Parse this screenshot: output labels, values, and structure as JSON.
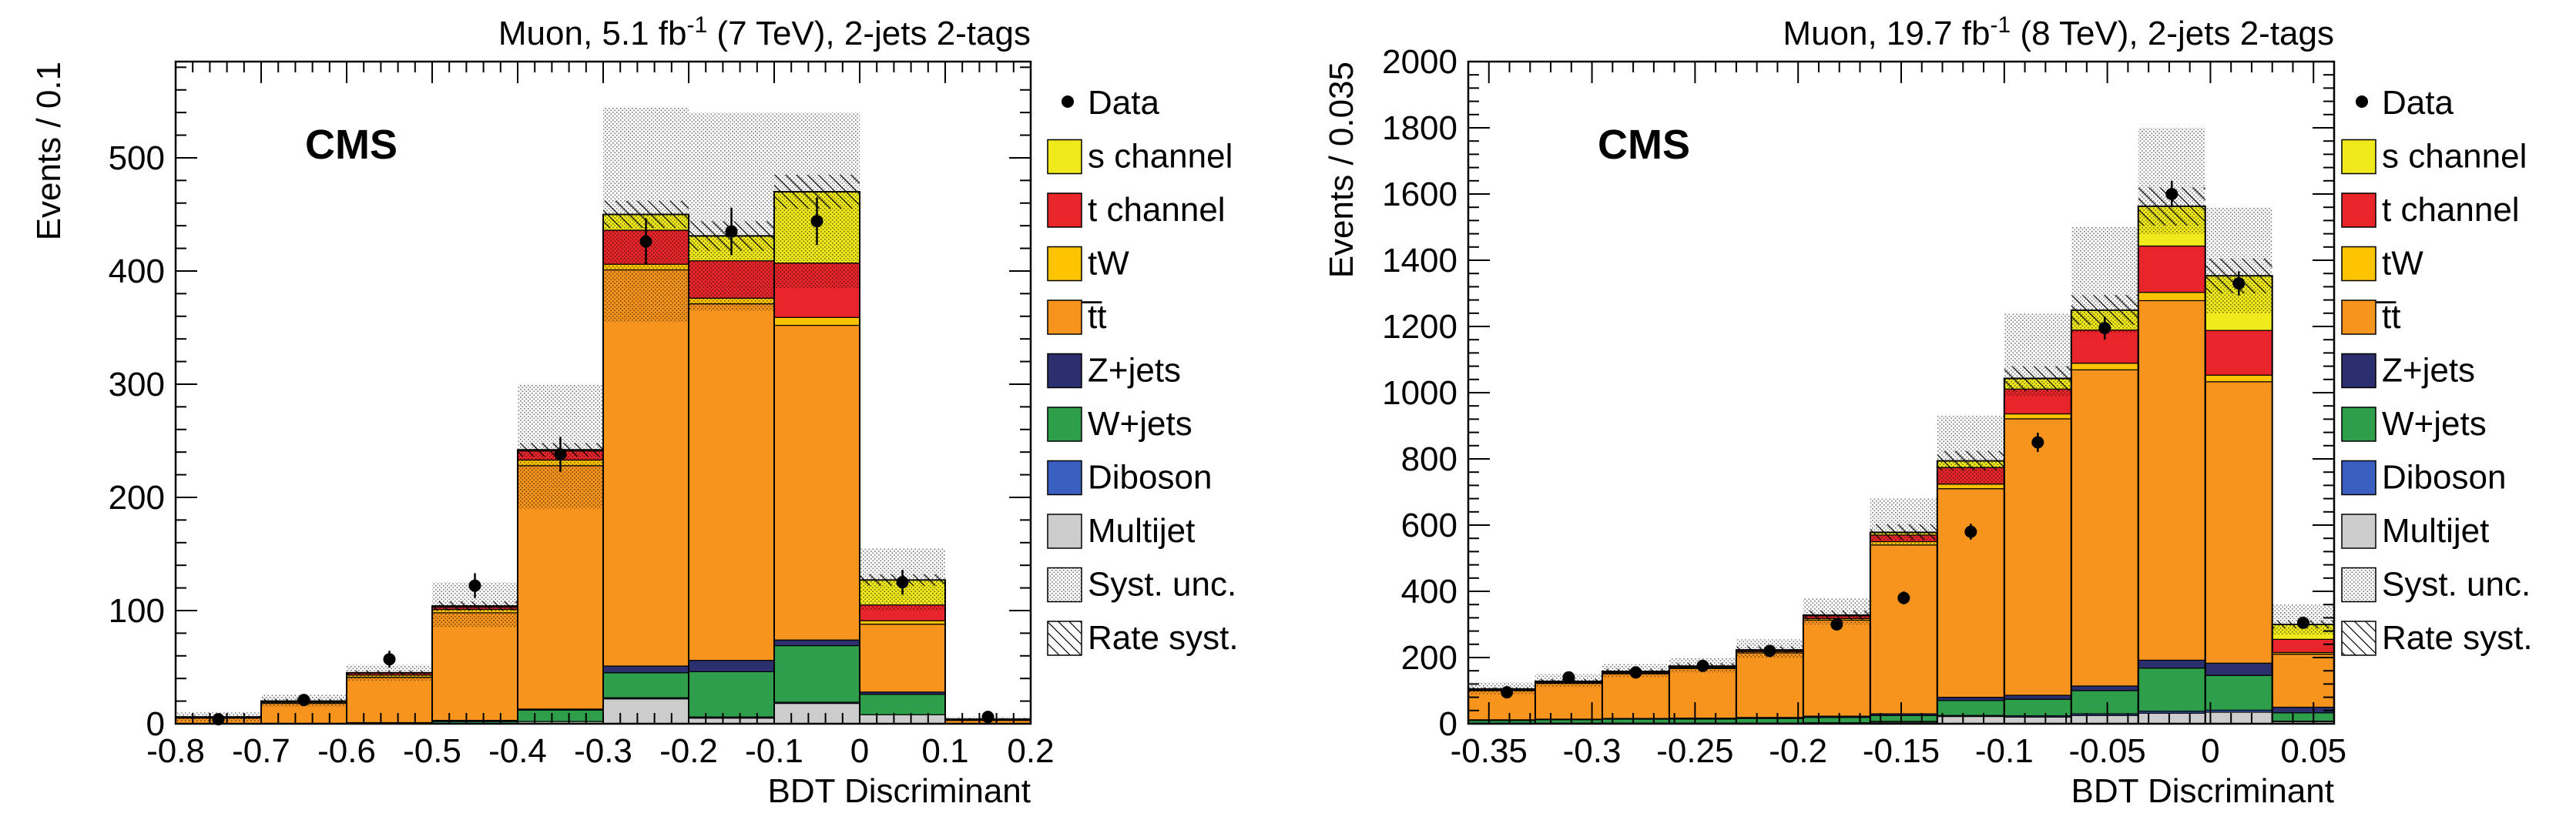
{
  "colors": {
    "s_channel": "#f0ea1c",
    "t_channel": "#e8252a",
    "tW": "#ffc400",
    "ttbar": "#f7941d",
    "Z_jets": "#2b2f6e",
    "W_jets": "#2e9e4a",
    "Diboson": "#3b5fc0",
    "Multijet": "#cccccc",
    "data": "#000000"
  },
  "chart_data": [
    {
      "type": "bar",
      "stacked": true,
      "title": "Muon, 5.1 fb",
      "title_sup": "-1",
      "title_rest": " (7 TeV), 2-jets 2-tags",
      "xlabel": "BDT Discriminant",
      "ylabel": "Events / 0.1",
      "cms_label": "CMS",
      "xlim": [
        -0.8,
        0.2
      ],
      "ylim": [
        0,
        585
      ],
      "xticks": [
        -0.8,
        -0.7,
        -0.6,
        -0.5,
        -0.4,
        -0.3,
        -0.2,
        -0.1,
        0,
        0.1,
        0.2
      ],
      "xtick_labels": [
        "-0.8",
        "-0.7",
        "-0.6",
        "-0.5",
        "-0.4",
        "-0.3",
        "-0.2",
        "-0.1",
        "0",
        "0.1",
        "0.2"
      ],
      "yticks": [
        0,
        100,
        200,
        300,
        400,
        500
      ],
      "ytick_labels": [
        "0",
        "100",
        "200",
        "300",
        "400",
        "500"
      ],
      "bin_edges": [
        -0.8,
        -0.7,
        -0.6,
        -0.5,
        -0.4,
        -0.3,
        -0.2,
        -0.1,
        0.0,
        0.1,
        0.2
      ],
      "series": [
        {
          "name": "Multijet",
          "key": "Multijet",
          "values": [
            0,
            0,
            0,
            0,
            2,
            22,
            5,
            18,
            8,
            0
          ]
        },
        {
          "name": "Diboson",
          "key": "Diboson",
          "values": [
            0,
            0,
            0,
            0,
            0,
            1,
            1,
            1,
            0,
            0
          ]
        },
        {
          "name": "W+jets",
          "key": "W_jets",
          "values": [
            0,
            0,
            1,
            2,
            10,
            22,
            40,
            50,
            18,
            0
          ]
        },
        {
          "name": "Z+jets",
          "key": "Z_jets",
          "values": [
            0,
            0,
            0,
            1,
            1,
            6,
            10,
            5,
            2,
            0
          ]
        },
        {
          "name": "t̅t",
          "key": "ttbar",
          "values": [
            5,
            18,
            40,
            95,
            215,
            350,
            315,
            278,
            60,
            3
          ]
        },
        {
          "name": "tW",
          "key": "tW",
          "values": [
            0,
            1,
            2,
            3,
            5,
            5,
            5,
            7,
            3,
            0
          ]
        },
        {
          "name": "t channel",
          "key": "t_channel",
          "values": [
            1,
            1,
            2,
            2,
            8,
            30,
            33,
            48,
            14,
            1
          ]
        },
        {
          "name": "s channel",
          "key": "s_channel",
          "values": [
            0,
            0,
            0,
            1,
            1,
            14,
            22,
            63,
            22,
            0
          ]
        }
      ],
      "totals": [
        6,
        20,
        45,
        104,
        242,
        450,
        431,
        470,
        127,
        4
      ],
      "syst_band": [
        [
          2,
          10
        ],
        [
          15,
          26
        ],
        [
          38,
          52
        ],
        [
          85,
          125
        ],
        [
          190,
          300
        ],
        [
          355,
          545
        ],
        [
          365,
          540
        ],
        [
          385,
          540
        ],
        [
          100,
          155
        ],
        [
          2,
          6
        ]
      ],
      "rate_band": [
        [
          5,
          7
        ],
        [
          19,
          22
        ],
        [
          43,
          47
        ],
        [
          100,
          108
        ],
        [
          236,
          248
        ],
        [
          438,
          462
        ],
        [
          418,
          444
        ],
        [
          455,
          485
        ],
        [
          122,
          132
        ],
        [
          3,
          5
        ]
      ],
      "data_points": {
        "x": [
          -0.75,
          -0.65,
          -0.55,
          -0.45,
          -0.35,
          -0.25,
          -0.15,
          -0.05,
          0.05,
          0.15
        ],
        "y": [
          4,
          21,
          57,
          122,
          238,
          426,
          435,
          444,
          125,
          6
        ],
        "err": [
          2,
          5,
          7.5,
          11,
          15.5,
          20.5,
          21,
          21,
          11,
          2.5
        ]
      },
      "legend": {
        "placement": "right",
        "entries": [
          "Data",
          "s channel",
          "t channel",
          "tW",
          "t̅t",
          "Z+jets",
          "W+jets",
          "Diboson",
          "Multijet",
          "Syst. unc.",
          "Rate syst."
        ]
      }
    },
    {
      "type": "bar",
      "stacked": true,
      "title": "Muon, 19.7 fb",
      "title_sup": "-1",
      "title_rest": " (8 TeV), 2-jets 2-tags",
      "xlabel": "BDT Discriminant",
      "ylabel": "Events / 0.035",
      "cms_label": "CMS",
      "xlim": [
        -0.36,
        0.06
      ],
      "ylim": [
        0,
        2000
      ],
      "xticks": [
        -0.35,
        -0.3,
        -0.25,
        -0.2,
        -0.15,
        -0.1,
        -0.05,
        0,
        0.05
      ],
      "xtick_labels": [
        "-0.35",
        "-0.3",
        "-0.25",
        "-0.2",
        "-0.15",
        "-0.1",
        "-0.05",
        "0",
        "0.05"
      ],
      "yticks": [
        0,
        200,
        400,
        600,
        800,
        1000,
        1200,
        1400,
        1600,
        1800,
        2000
      ],
      "ytick_labels": [
        "0",
        "200",
        "400",
        "600",
        "800",
        "1000",
        "1200",
        "1400",
        "1600",
        "1800",
        "2000"
      ],
      "bin_edges": [
        -0.36,
        -0.3275,
        -0.295,
        -0.2625,
        -0.23,
        -0.1975,
        -0.165,
        -0.1325,
        -0.1,
        -0.0675,
        -0.035,
        -0.0025,
        0.03,
        0.06
      ],
      "series": [
        {
          "name": "Multijet",
          "key": "Multijet",
          "values": [
            2,
            2,
            2,
            2,
            2,
            2,
            5,
            22,
            20,
            25,
            32,
            35,
            6
          ]
        },
        {
          "name": "Diboson",
          "key": "Diboson",
          "values": [
            0,
            0,
            0,
            0,
            0,
            1,
            2,
            3,
            4,
            5,
            6,
            6,
            2
          ]
        },
        {
          "name": "W+jets",
          "key": "W_jets",
          "values": [
            8,
            10,
            12,
            12,
            14,
            16,
            18,
            45,
            50,
            70,
            130,
            105,
            25
          ]
        },
        {
          "name": "Z+jets",
          "key": "Z_jets",
          "values": [
            2,
            2,
            2,
            3,
            3,
            4,
            5,
            10,
            12,
            14,
            24,
            37,
            17
          ]
        },
        {
          "name": "t̅t",
          "key": "ttbar",
          "values": [
            88,
            108,
            135,
            150,
            195,
            290,
            510,
            630,
            835,
            955,
            1086,
            850,
            160
          ]
        },
        {
          "name": "tW",
          "key": "tW",
          "values": [
            2,
            2,
            3,
            3,
            4,
            5,
            10,
            14,
            15,
            20,
            25,
            20,
            5
          ]
        },
        {
          "name": "t channel",
          "key": "t_channel",
          "values": [
            2,
            3,
            3,
            3,
            4,
            8,
            20,
            50,
            75,
            100,
            140,
            135,
            40
          ]
        },
        {
          "name": "s channel",
          "key": "s_channel",
          "values": [
            1,
            1,
            1,
            1,
            1,
            2,
            8,
            20,
            32,
            60,
            120,
            165,
            45
          ]
        }
      ],
      "totals": [
        105,
        128,
        158,
        174,
        223,
        328,
        578,
        794,
        1043,
        1249,
        1563,
        1353,
        300
      ],
      "syst_band": [
        [
          90,
          125
        ],
        [
          110,
          150
        ],
        [
          140,
          180
        ],
        [
          155,
          200
        ],
        [
          200,
          255
        ],
        [
          300,
          380
        ],
        [
          540,
          680
        ],
        [
          720,
          930
        ],
        [
          990,
          1240
        ],
        [
          1180,
          1500
        ],
        [
          1480,
          1800
        ],
        [
          1240,
          1560
        ],
        [
          270,
          360
        ]
      ],
      "rate_band": [
        [
          100,
          110
        ],
        [
          122,
          135
        ],
        [
          151,
          166
        ],
        [
          166,
          183
        ],
        [
          213,
          234
        ],
        [
          314,
          342
        ],
        [
          555,
          602
        ],
        [
          765,
          824
        ],
        [
          1005,
          1080
        ],
        [
          1205,
          1295
        ],
        [
          1505,
          1620
        ],
        [
          1300,
          1405
        ],
        [
          288,
          312
        ]
      ],
      "data_points": {
        "x": [
          -0.34125,
          -0.31125,
          -0.27875,
          -0.24625,
          -0.21375,
          -0.18125,
          -0.14875,
          -0.11625,
          -0.08375,
          -0.05125,
          -0.01875,
          0.01375,
          0.045
        ],
        "y": [
          95,
          140,
          155,
          175,
          220,
          300,
          380,
          580,
          850,
          1195,
          1600,
          1330,
          305
        ],
        "err": [
          10,
          12,
          12.5,
          13,
          15,
          17,
          19.5,
          24,
          29,
          34.5,
          40,
          36.5,
          17.5
        ]
      },
      "legend": {
        "placement": "right",
        "entries": [
          "Data",
          "s channel",
          "t channel",
          "tW",
          "t̅t",
          "Z+jets",
          "W+jets",
          "Diboson",
          "Multijet",
          "Syst. unc.",
          "Rate syst."
        ]
      }
    }
  ]
}
